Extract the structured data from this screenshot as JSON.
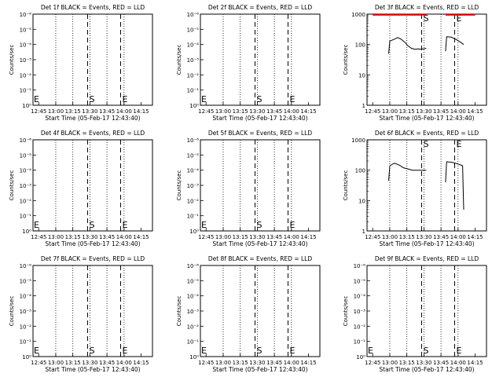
{
  "chart_data": [
    {
      "type": "line",
      "title": "Det 1f BLACK = Events, RED = LLD",
      "xlabel": "Start Time (05-Feb-17 12:43:40)",
      "ylabel": "Counts/sec",
      "x_ticks": [
        "12:45",
        "13:00",
        "13:15",
        "13:30",
        "13:45",
        "14:00",
        "14:15"
      ],
      "y_ticks": [
        "10⁰",
        "10⁻¹",
        "10⁻²",
        "10⁻³",
        "10⁻⁴",
        "10⁻⁵",
        "10⁻⁶"
      ],
      "y_scale": "log",
      "markers": [
        {
          "label": "S",
          "x": "13:28"
        },
        {
          "label": "E",
          "x": "13:57"
        }
      ],
      "edge_label": "E",
      "series": []
    },
    {
      "type": "line",
      "title": "Det 2f BLACK = Events, RED = LLD",
      "xlabel": "Start Time (05-Feb-17 12:43:40)",
      "ylabel": "Counts/sec",
      "x_ticks": [
        "12:45",
        "13:00",
        "13:15",
        "13:30",
        "13:45",
        "14:00",
        "14:15"
      ],
      "y_ticks": [
        "10⁰",
        "10⁻¹",
        "10⁻²",
        "10⁻³",
        "10⁻⁴",
        "10⁻⁵",
        "10⁻⁶"
      ],
      "y_scale": "log",
      "markers": [
        {
          "label": "S",
          "x": "13:28"
        },
        {
          "label": "E",
          "x": "13:57"
        }
      ],
      "edge_label": "E",
      "series": []
    },
    {
      "type": "line",
      "title": "Det 3f BLACK = Events, RED = LLD",
      "xlabel": "Start Time (05-Feb-17 12:43:40)",
      "ylabel": "Counts/sec",
      "x_ticks": [
        "12:45",
        "13:00",
        "13:15",
        "13:30",
        "13:45",
        "14:00",
        "14:15"
      ],
      "y_ticks": [
        "1",
        "10",
        "100",
        "1000"
      ],
      "y_scale": "log",
      "ylim": [
        1,
        1000
      ],
      "markers": [
        {
          "label": "S",
          "x": "13:28"
        },
        {
          "label": "E",
          "x": "13:57"
        }
      ],
      "series": [
        {
          "color": "#000000",
          "segments": [
            [
              [
                "12:59",
                50
              ],
              [
                "13:00",
                130
              ],
              [
                "13:04",
                150
              ],
              [
                "13:07",
                170
              ],
              [
                "13:10",
                150
              ],
              [
                "13:13",
                120
              ],
              [
                "13:16",
                90
              ],
              [
                "13:19",
                75
              ],
              [
                "13:22",
                70
              ],
              [
                "13:25",
                72
              ],
              [
                "13:28",
                70
              ],
              [
                "13:32",
                75
              ]
            ],
            [
              [
                "13:49",
                60
              ],
              [
                "13:50",
                180
              ],
              [
                "13:54",
                175
              ],
              [
                "13:58",
                150
              ],
              [
                "14:02",
                120
              ],
              [
                "14:05",
                100
              ]
            ]
          ]
        },
        {
          "color": "#ff0000",
          "segments": [
            [
              [
                "12:45",
                1050
              ],
              [
                "13:32",
                1050
              ]
            ],
            [
              [
                "13:49",
                1050
              ],
              [
                "14:15",
                1050
              ]
            ]
          ]
        }
      ]
    },
    {
      "type": "line",
      "title": "Det 4f BLACK = Events, RED = LLD",
      "xlabel": "Start Time (05-Feb-17 12:43:40)",
      "ylabel": "Counts/sec",
      "x_ticks": [
        "12:45",
        "13:00",
        "13:15",
        "13:30",
        "13:45",
        "14:00",
        "14:15"
      ],
      "y_ticks": [
        "10⁰",
        "10⁻¹",
        "10⁻²",
        "10⁻³",
        "10⁻⁴",
        "10⁻⁵",
        "10⁻⁶"
      ],
      "y_scale": "log",
      "markers": [
        {
          "label": "S",
          "x": "13:28"
        },
        {
          "label": "E",
          "x": "13:57"
        }
      ],
      "edge_label": "E",
      "series": []
    },
    {
      "type": "line",
      "title": "Det 5f BLACK = Events, RED = LLD",
      "xlabel": "Start Time (05-Feb-17 12:43:40)",
      "ylabel": "Counts/sec",
      "x_ticks": [
        "12:45",
        "13:00",
        "13:15",
        "13:30",
        "13:45",
        "14:00",
        "14:15"
      ],
      "y_ticks": [
        "10⁰",
        "10⁻¹",
        "10⁻²",
        "10⁻³",
        "10⁻⁴",
        "10⁻⁵",
        "10⁻⁶"
      ],
      "y_scale": "log",
      "markers": [
        {
          "label": "S",
          "x": "13:28"
        },
        {
          "label": "E",
          "x": "13:57"
        }
      ],
      "edge_label": "E",
      "series": []
    },
    {
      "type": "line",
      "title": "Det 6f BLACK = Events, RED = LLD",
      "xlabel": "Start Time (05-Feb-17 12:43:40)",
      "ylabel": "Counts/sec",
      "x_ticks": [
        "12:45",
        "13:00",
        "13:15",
        "13:30",
        "13:45",
        "14:00",
        "14:15"
      ],
      "y_ticks": [
        "1",
        "10",
        "100",
        "1000"
      ],
      "y_scale": "log",
      "ylim": [
        1,
        1000
      ],
      "markers": [
        {
          "label": "S",
          "x": "13:28"
        },
        {
          "label": "E",
          "x": "13:57"
        }
      ],
      "series": [
        {
          "color": "#000000",
          "segments": [
            [
              [
                "12:59",
                45
              ],
              [
                "13:00",
                140
              ],
              [
                "13:04",
                170
              ],
              [
                "13:08",
                150
              ],
              [
                "13:12",
                120
              ],
              [
                "13:16",
                110
              ],
              [
                "13:20",
                100
              ],
              [
                "13:25",
                100
              ],
              [
                "13:32",
                100
              ]
            ],
            [
              [
                "13:49",
                40
              ],
              [
                "13:50",
                190
              ],
              [
                "13:55",
                180
              ],
              [
                "14:00",
                160
              ],
              [
                "14:04",
                140
              ],
              [
                "14:05",
                5
              ]
            ]
          ]
        }
      ]
    },
    {
      "type": "line",
      "title": "Det 7f BLACK = Events, RED = LLD",
      "xlabel": "Start Time (05-Feb-17 12:43:40)",
      "ylabel": "Counts/sec",
      "x_ticks": [
        "12:45",
        "13:00",
        "13:15",
        "13:30",
        "13:45",
        "14:00",
        "14:15"
      ],
      "y_ticks": [
        "10⁰",
        "10⁻¹",
        "10⁻²",
        "10⁻³",
        "10⁻⁴",
        "10⁻⁵",
        "10⁻⁶"
      ],
      "y_scale": "log",
      "markers": [
        {
          "label": "S",
          "x": "13:28"
        },
        {
          "label": "E",
          "x": "13:57"
        }
      ],
      "edge_label": "E",
      "series": []
    },
    {
      "type": "line",
      "title": "Det 8f BLACK = Events, RED = LLD",
      "xlabel": "Start Time (05-Feb-17 12:43:40)",
      "ylabel": "Counts/sec",
      "x_ticks": [
        "12:45",
        "13:00",
        "13:15",
        "13:30",
        "13:45",
        "14:00",
        "14:15"
      ],
      "y_ticks": [
        "10⁰",
        "10⁻¹",
        "10⁻²",
        "10⁻³",
        "10⁻⁴",
        "10⁻⁵",
        "10⁻⁶"
      ],
      "y_scale": "log",
      "markers": [
        {
          "label": "S",
          "x": "13:28"
        },
        {
          "label": "E",
          "x": "13:57"
        }
      ],
      "edge_label": "E",
      "series": []
    },
    {
      "type": "line",
      "title": "Det 9f BLACK = Events, RED = LLD",
      "xlabel": "Start Time (05-Feb-17 12:43:40)",
      "ylabel": "Counts/sec",
      "x_ticks": [
        "12:45",
        "13:00",
        "13:15",
        "13:30",
        "13:45",
        "14:00",
        "14:15"
      ],
      "y_ticks": [
        "10⁰",
        "10⁻¹",
        "10⁻²",
        "10⁻³",
        "10⁻⁴",
        "10⁻⁵",
        "10⁻⁶"
      ],
      "y_scale": "log",
      "markers": [
        {
          "label": "S",
          "x": "13:28"
        },
        {
          "label": "E",
          "x": "13:57"
        }
      ],
      "edge_label": "E",
      "series": []
    }
  ]
}
